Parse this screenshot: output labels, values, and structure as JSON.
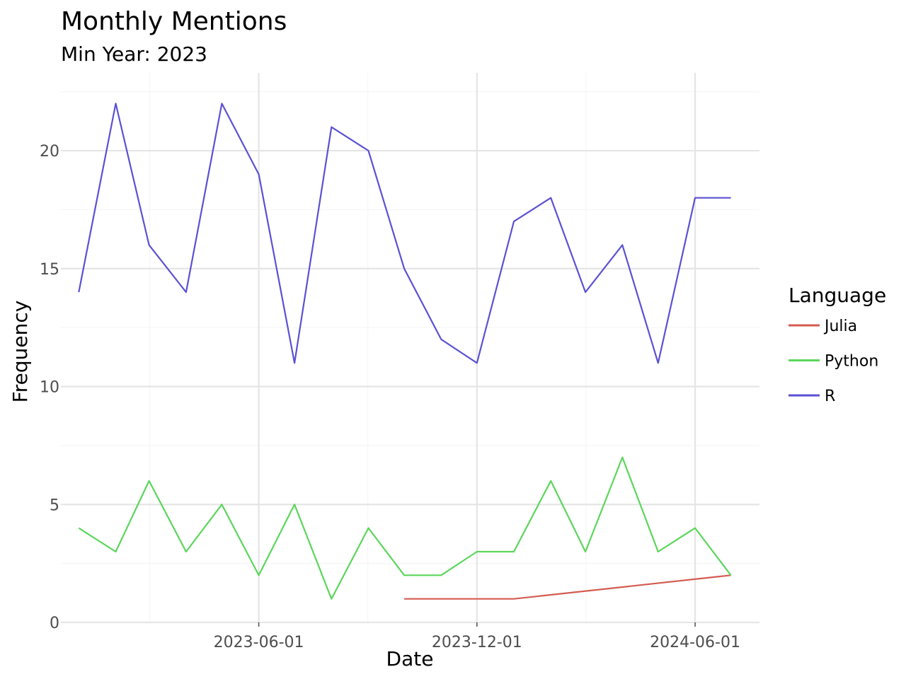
{
  "chart_data": {
    "type": "line",
    "title": "Monthly Mentions",
    "subtitle": "Min Year: 2023",
    "xlabel": "Date",
    "ylabel": "Frequency",
    "x_type": "date",
    "xlim": [
      "2023-01-01",
      "2024-07-10"
    ],
    "ylim": [
      0,
      22.5
    ],
    "x_ticks": [
      {
        "value": "2023-06-01",
        "label": "2023-06-01"
      },
      {
        "value": "2023-12-01",
        "label": "2023-12-01"
      },
      {
        "value": "2024-06-01",
        "label": "2024-06-01"
      }
    ],
    "y_ticks": [
      {
        "value": 0,
        "label": "0"
      },
      {
        "value": 5,
        "label": "5"
      },
      {
        "value": 10,
        "label": "10"
      },
      {
        "value": 15,
        "label": "15"
      },
      {
        "value": 20,
        "label": "20"
      }
    ],
    "grid": true,
    "legend": {
      "title": "Language",
      "position": "right"
    },
    "series": [
      {
        "name": "Julia",
        "color": "#d45b51",
        "points": [
          {
            "x": "2023-10-01",
            "y": 1
          },
          {
            "x": "2023-11-01",
            "y": 1
          },
          {
            "x": "2023-12-01",
            "y": 1
          },
          {
            "x": "2024-01-01",
            "y": 1
          },
          {
            "x": "2024-07-01",
            "y": 2
          }
        ]
      },
      {
        "name": "Python",
        "color": "#5bd65b",
        "points": [
          {
            "x": "2023-01-01",
            "y": 4
          },
          {
            "x": "2023-02-01",
            "y": 3
          },
          {
            "x": "2023-03-01",
            "y": 6
          },
          {
            "x": "2023-04-01",
            "y": 3
          },
          {
            "x": "2023-05-01",
            "y": 5
          },
          {
            "x": "2023-06-01",
            "y": 2
          },
          {
            "x": "2023-07-01",
            "y": 5
          },
          {
            "x": "2023-08-01",
            "y": 1
          },
          {
            "x": "2023-09-01",
            "y": 4
          },
          {
            "x": "2023-10-01",
            "y": 2
          },
          {
            "x": "2023-11-01",
            "y": 2
          },
          {
            "x": "2023-12-01",
            "y": 3
          },
          {
            "x": "2024-01-01",
            "y": 3
          },
          {
            "x": "2024-02-01",
            "y": 6
          },
          {
            "x": "2024-03-01",
            "y": 3
          },
          {
            "x": "2024-04-01",
            "y": 7
          },
          {
            "x": "2024-05-01",
            "y": 3
          },
          {
            "x": "2024-06-01",
            "y": 4
          },
          {
            "x": "2024-07-01",
            "y": 2
          }
        ]
      },
      {
        "name": "R",
        "color": "#5b51d4",
        "points": [
          {
            "x": "2023-01-01",
            "y": 14
          },
          {
            "x": "2023-02-01",
            "y": 22
          },
          {
            "x": "2023-03-01",
            "y": 16
          },
          {
            "x": "2023-04-01",
            "y": 14
          },
          {
            "x": "2023-05-01",
            "y": 22
          },
          {
            "x": "2023-06-01",
            "y": 19
          },
          {
            "x": "2023-07-01",
            "y": 11
          },
          {
            "x": "2023-08-01",
            "y": 21
          },
          {
            "x": "2023-09-01",
            "y": 20
          },
          {
            "x": "2023-10-01",
            "y": 15
          },
          {
            "x": "2023-11-01",
            "y": 12
          },
          {
            "x": "2023-12-01",
            "y": 11
          },
          {
            "x": "2024-01-01",
            "y": 17
          },
          {
            "x": "2024-02-01",
            "y": 18
          },
          {
            "x": "2024-03-01",
            "y": 14
          },
          {
            "x": "2024-04-01",
            "y": 16
          },
          {
            "x": "2024-05-01",
            "y": 11
          },
          {
            "x": "2024-06-01",
            "y": 18
          },
          {
            "x": "2024-07-01",
            "y": 18
          }
        ]
      }
    ]
  }
}
